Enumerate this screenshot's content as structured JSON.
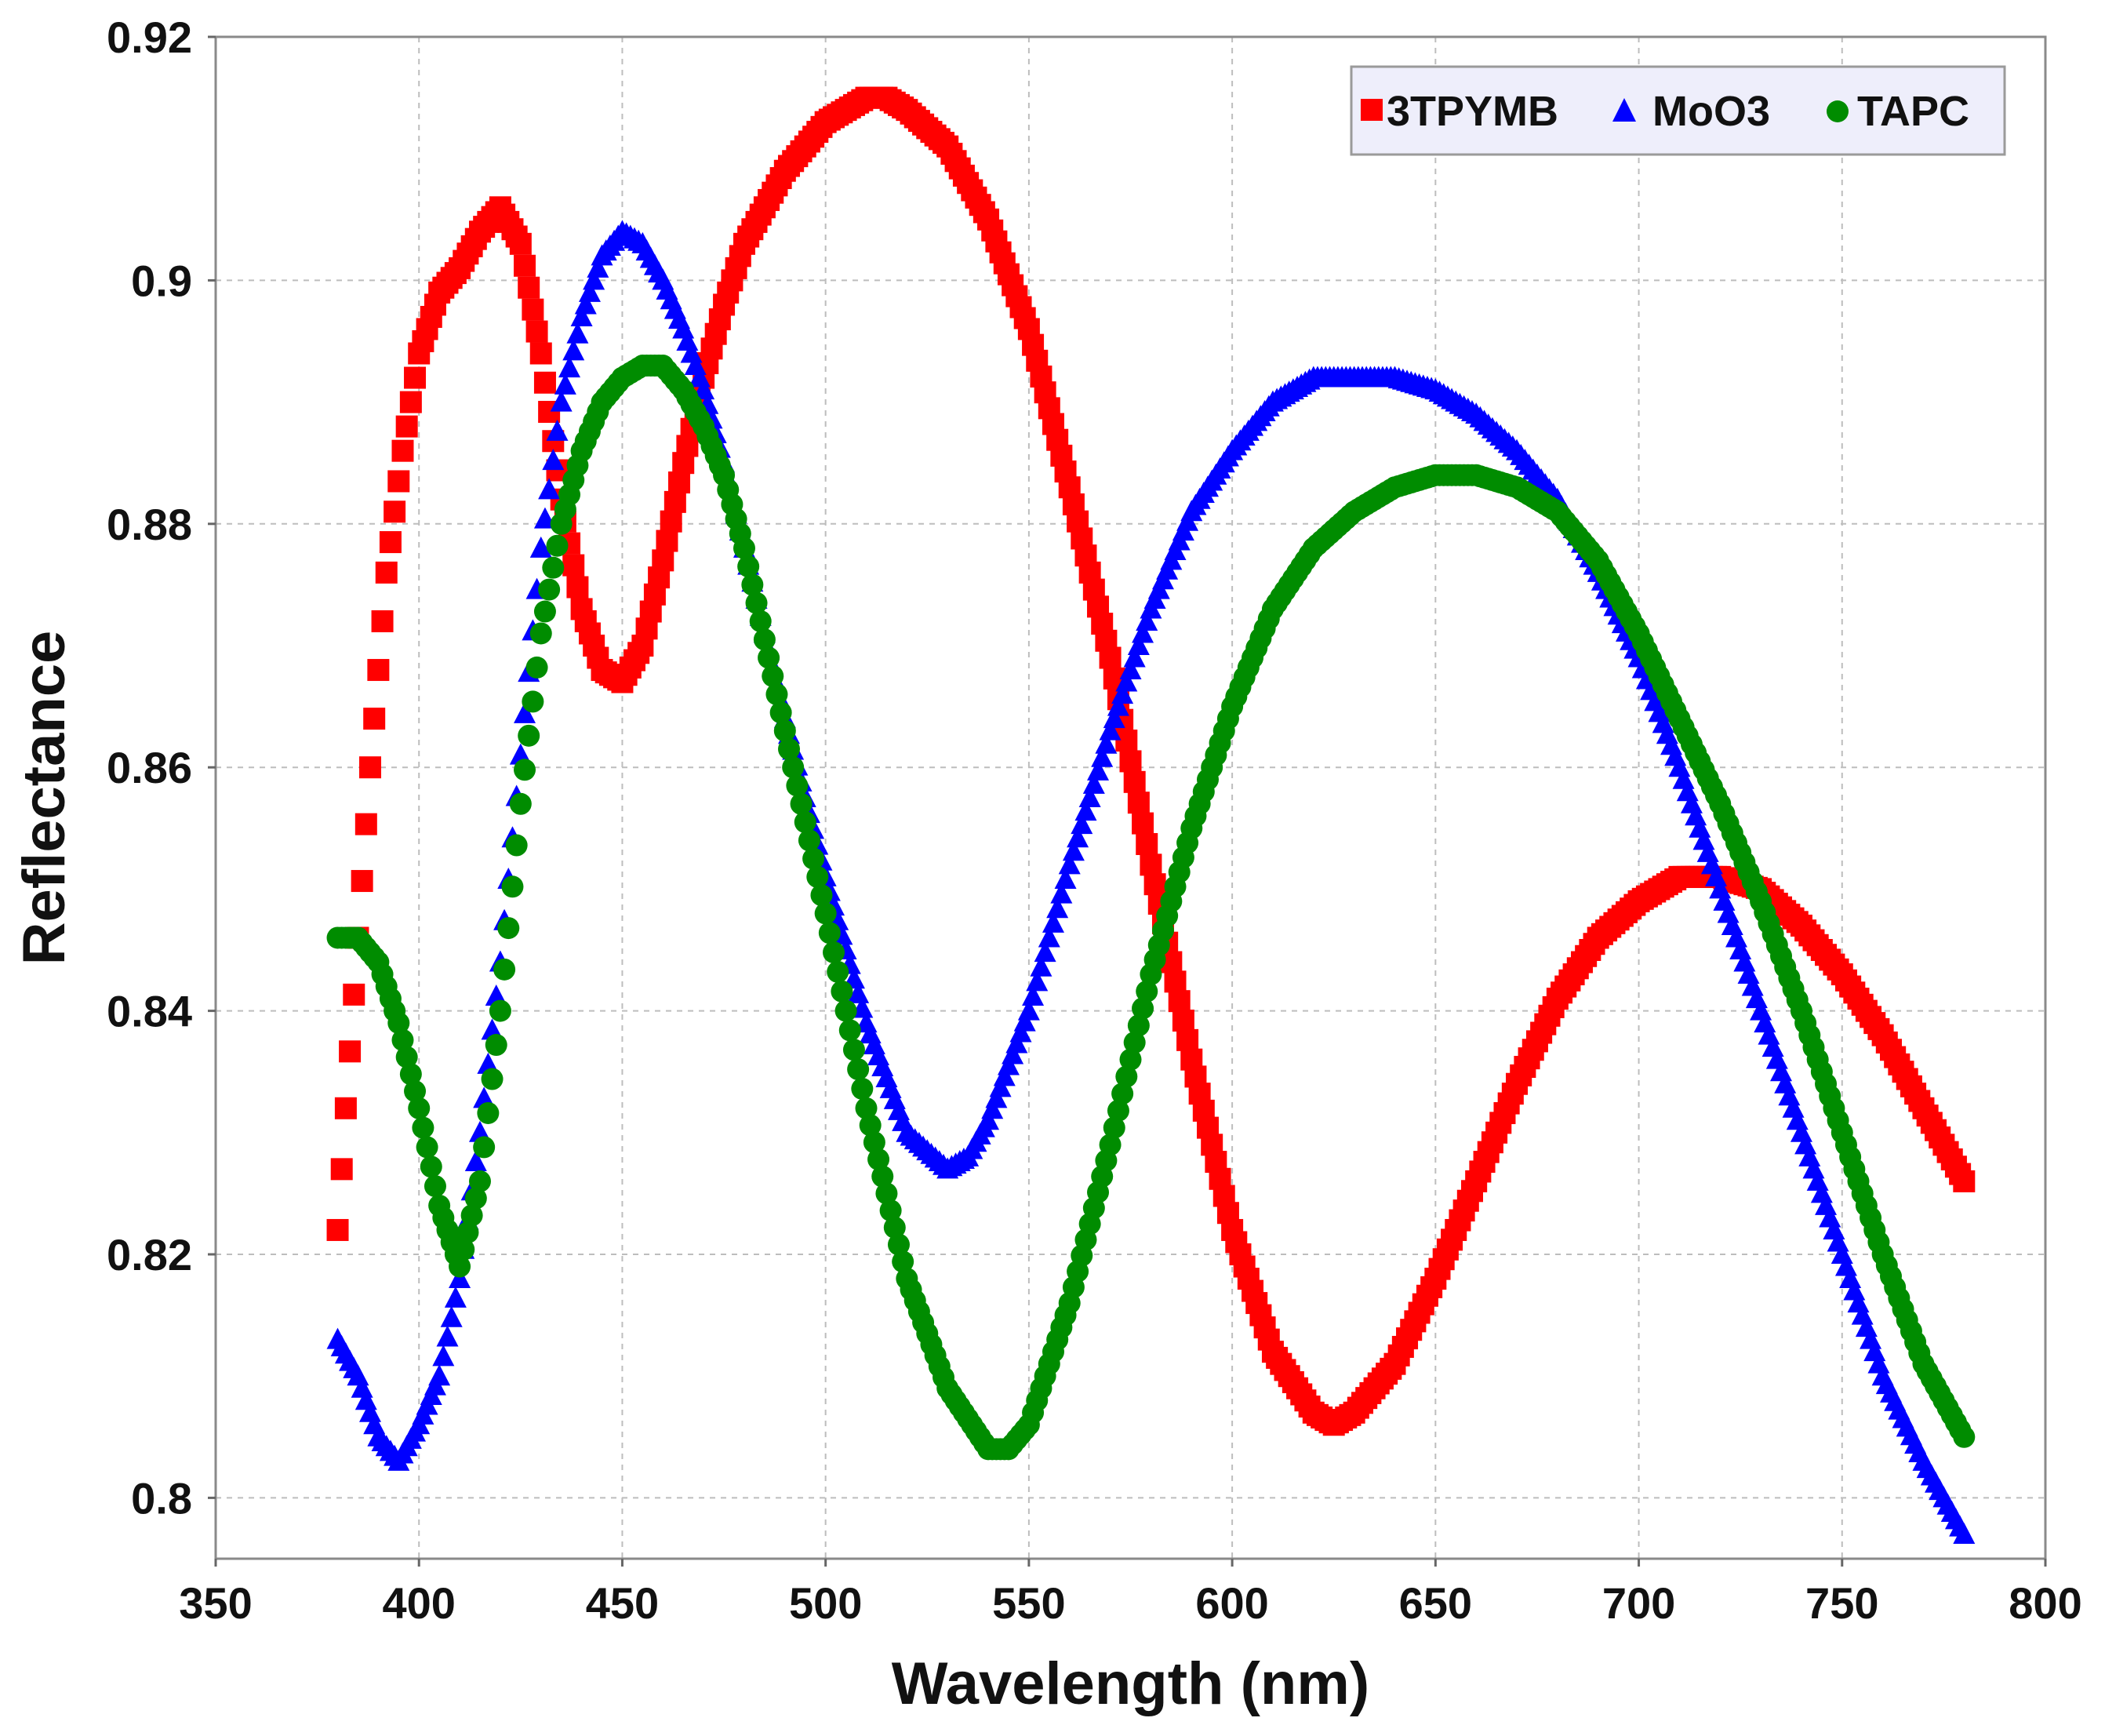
{
  "chart_data": {
    "type": "scatter",
    "title": "",
    "xlabel": "Wavelength (nm)",
    "ylabel": "Reflectance",
    "xlim": [
      350,
      800
    ],
    "ylim": [
      0.795,
      0.92
    ],
    "xticks": [
      "350",
      "400",
      "450",
      "500",
      "550",
      "600",
      "650",
      "700",
      "750",
      "800"
    ],
    "yticks": [
      "0.8",
      "0.82",
      "0.84",
      "0.86",
      "0.88",
      "0.9",
      "0.92"
    ],
    "grid": true,
    "legend_position": "top-right",
    "series": [
      {
        "name": "3TPYMB",
        "marker": "square",
        "color": "#ff0000",
        "x": [
          380,
          382,
          385,
          388,
          392,
          396,
          400,
          405,
          410,
          415,
          420,
          425,
          430,
          435,
          440,
          445,
          450,
          455,
          460,
          465,
          470,
          475,
          480,
          490,
          500,
          505,
          510,
          515,
          520,
          530,
          540,
          550,
          560,
          570,
          580,
          590,
          600,
          610,
          620,
          625,
          630,
          640,
          650,
          660,
          670,
          680,
          690,
          700,
          710,
          720,
          730,
          740,
          750,
          760,
          770,
          780
        ],
        "values": [
          0.822,
          0.832,
          0.846,
          0.86,
          0.876,
          0.886,
          0.894,
          0.899,
          0.901,
          0.904,
          0.906,
          0.903,
          0.894,
          0.882,
          0.873,
          0.868,
          0.867,
          0.87,
          0.877,
          0.885,
          0.892,
          0.898,
          0.903,
          0.909,
          0.913,
          0.914,
          0.915,
          0.915,
          0.914,
          0.911,
          0.905,
          0.896,
          0.883,
          0.869,
          0.852,
          0.836,
          0.822,
          0.812,
          0.807,
          0.806,
          0.807,
          0.811,
          0.818,
          0.826,
          0.834,
          0.841,
          0.846,
          0.849,
          0.851,
          0.851,
          0.85,
          0.847,
          0.843,
          0.838,
          0.832,
          0.826
        ]
      },
      {
        "name": "MoO3",
        "marker": "triangle",
        "color": "#0000ff",
        "x": [
          380,
          385,
          390,
          395,
          400,
          405,
          410,
          415,
          420,
          425,
          430,
          435,
          440,
          445,
          450,
          455,
          460,
          465,
          470,
          475,
          480,
          490,
          500,
          510,
          520,
          530,
          535,
          540,
          550,
          560,
          570,
          580,
          590,
          600,
          610,
          620,
          630,
          640,
          650,
          660,
          670,
          680,
          690,
          700,
          710,
          720,
          730,
          740,
          750,
          760,
          770,
          780
        ],
        "values": [
          0.813,
          0.81,
          0.805,
          0.803,
          0.806,
          0.81,
          0.818,
          0.83,
          0.844,
          0.861,
          0.878,
          0.89,
          0.897,
          0.902,
          0.904,
          0.903,
          0.9,
          0.896,
          0.891,
          0.885,
          0.878,
          0.864,
          0.851,
          0.839,
          0.83,
          0.827,
          0.828,
          0.831,
          0.84,
          0.852,
          0.863,
          0.873,
          0.881,
          0.886,
          0.89,
          0.892,
          0.892,
          0.892,
          0.891,
          0.889,
          0.886,
          0.882,
          0.876,
          0.869,
          0.86,
          0.85,
          0.84,
          0.83,
          0.82,
          0.81,
          0.803,
          0.797
        ]
      },
      {
        "name": "TAPC",
        "marker": "circle",
        "color": "#008c00",
        "x": [
          380,
          385,
          390,
          395,
          400,
          405,
          410,
          415,
          420,
          425,
          430,
          435,
          440,
          445,
          450,
          455,
          460,
          465,
          470,
          475,
          480,
          490,
          500,
          510,
          520,
          530,
          540,
          545,
          550,
          560,
          570,
          580,
          590,
          600,
          610,
          620,
          630,
          640,
          650,
          660,
          670,
          680,
          690,
          700,
          710,
          720,
          730,
          740,
          750,
          760,
          770,
          780
        ],
        "values": [
          0.846,
          0.846,
          0.844,
          0.839,
          0.832,
          0.824,
          0.819,
          0.826,
          0.84,
          0.857,
          0.871,
          0.88,
          0.886,
          0.89,
          0.892,
          0.893,
          0.893,
          0.891,
          0.888,
          0.884,
          0.878,
          0.863,
          0.848,
          0.832,
          0.818,
          0.809,
          0.804,
          0.804,
          0.806,
          0.816,
          0.829,
          0.843,
          0.855,
          0.865,
          0.873,
          0.878,
          0.881,
          0.883,
          0.884,
          0.884,
          0.883,
          0.881,
          0.877,
          0.871,
          0.864,
          0.857,
          0.849,
          0.84,
          0.83,
          0.82,
          0.811,
          0.805
        ]
      }
    ]
  }
}
